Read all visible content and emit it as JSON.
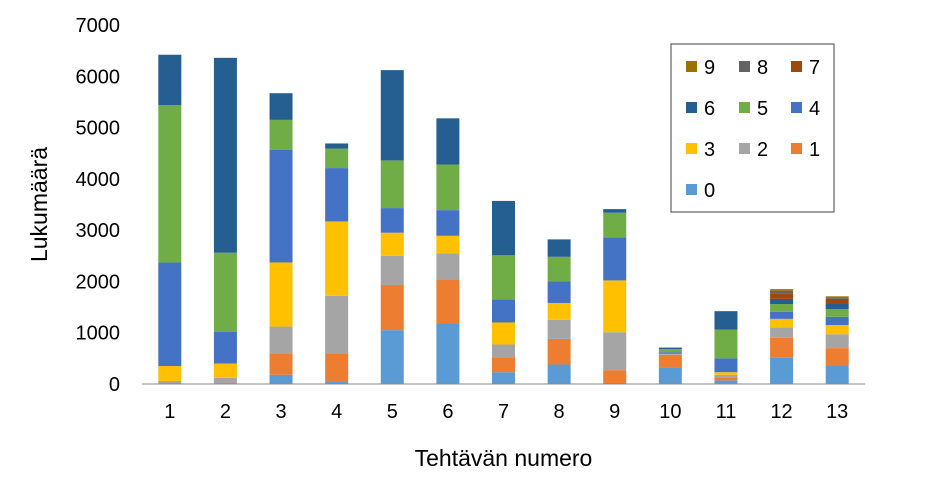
{
  "chart_data": {
    "type": "bar",
    "stacked": true,
    "xlabel": "Tehtävän numero",
    "ylabel": "Lukumäärä",
    "ylim": [
      0,
      7000
    ],
    "yticks": [
      "0",
      "1000",
      "2000",
      "3000",
      "4000",
      "5000",
      "6000",
      "7000"
    ],
    "ytick_values": [
      0,
      1000,
      2000,
      3000,
      4000,
      5000,
      6000,
      7000
    ],
    "categories": [
      "1",
      "2",
      "3",
      "4",
      "5",
      "6",
      "7",
      "8",
      "9",
      "10",
      "11",
      "12",
      "13"
    ],
    "grid": false,
    "legend_position": "top-right",
    "series": [
      {
        "name": "0",
        "color": "#5B9BD5",
        "values": [
          0,
          0,
          180,
          50,
          1050,
          1180,
          230,
          380,
          20,
          320,
          70,
          510,
          360
        ]
      },
      {
        "name": "1",
        "color": "#ED7D31",
        "values": [
          0,
          0,
          420,
          550,
          880,
          860,
          290,
          500,
          250,
          250,
          60,
          390,
          340
        ]
      },
      {
        "name": "2",
        "color": "#A5A5A5",
        "values": [
          60,
          120,
          520,
          1120,
          570,
          510,
          250,
          370,
          740,
          20,
          50,
          200,
          270
        ]
      },
      {
        "name": "3",
        "color": "#FFC000",
        "values": [
          290,
          280,
          1250,
          1450,
          450,
          340,
          430,
          330,
          1010,
          0,
          50,
          170,
          180
        ]
      },
      {
        "name": "4",
        "color": "#4472C4",
        "values": [
          2020,
          620,
          2200,
          1040,
          480,
          500,
          450,
          420,
          840,
          30,
          270,
          140,
          160
        ]
      },
      {
        "name": "5",
        "color": "#70AD47",
        "values": [
          3070,
          1540,
          580,
          380,
          930,
          890,
          860,
          480,
          480,
          60,
          560,
          150,
          150
        ]
      },
      {
        "name": "6",
        "color": "#255E91",
        "values": [
          980,
          3800,
          520,
          100,
          1760,
          900,
          1060,
          340,
          70,
          30,
          360,
          100,
          100
        ]
      },
      {
        "name": "7",
        "color": "#9E480E",
        "values": [
          0,
          0,
          0,
          0,
          0,
          0,
          0,
          0,
          0,
          0,
          0,
          110,
          100
        ]
      },
      {
        "name": "8",
        "color": "#636363",
        "values": [
          0,
          0,
          0,
          0,
          0,
          0,
          0,
          0,
          0,
          0,
          0,
          50,
          30
        ]
      },
      {
        "name": "9",
        "color": "#997300",
        "values": [
          0,
          0,
          0,
          0,
          0,
          0,
          0,
          0,
          0,
          0,
          0,
          30,
          20
        ]
      }
    ],
    "legend_order": [
      "9",
      "8",
      "7",
      "6",
      "5",
      "4",
      "3",
      "2",
      "1",
      "0"
    ]
  }
}
